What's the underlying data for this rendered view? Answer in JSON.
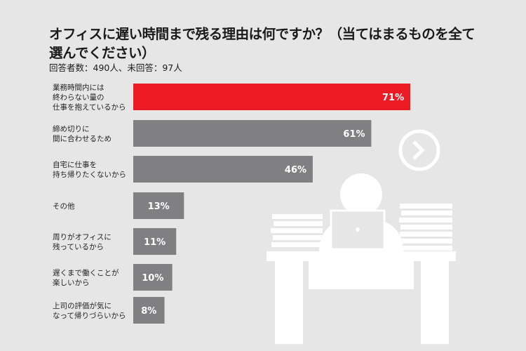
{
  "title": "オフィスに遅い時間まで残る理由は何ですか？（当てはまるものを全て選んでください）",
  "subtitle": "回答者数：490人、未回答：97人",
  "colors": {
    "highlight": "#ed1c24",
    "bar": "#808083",
    "background": "#e6e6e6"
  },
  "chart_data": {
    "type": "bar",
    "orientation": "horizontal",
    "title": "オフィスに遅い時間まで残る理由は何ですか？（当てはまるものを全て選んでください）",
    "categories": [
      [
        "業務時間内には",
        "終わらない量の",
        "仕事を抱えているから"
      ],
      [
        "締め切りに",
        "間に合わせるため"
      ],
      [
        "自宅に仕事を",
        "持ち帰りたくないから"
      ],
      [
        "その他"
      ],
      [
        "周りがオフィスに",
        "残っているから"
      ],
      [
        "遅くまで働くことが",
        "楽しいから"
      ],
      [
        "上司の評価が気に",
        "なって帰りづらいから"
      ]
    ],
    "values": [
      71,
      61,
      46,
      13,
      11,
      10,
      8
    ],
    "labels": [
      "71%",
      "61%",
      "46%",
      "13%",
      "11%",
      "10%",
      "8%"
    ],
    "unit": "%",
    "xlim": [
      0,
      100
    ],
    "highlight_index": 0
  }
}
